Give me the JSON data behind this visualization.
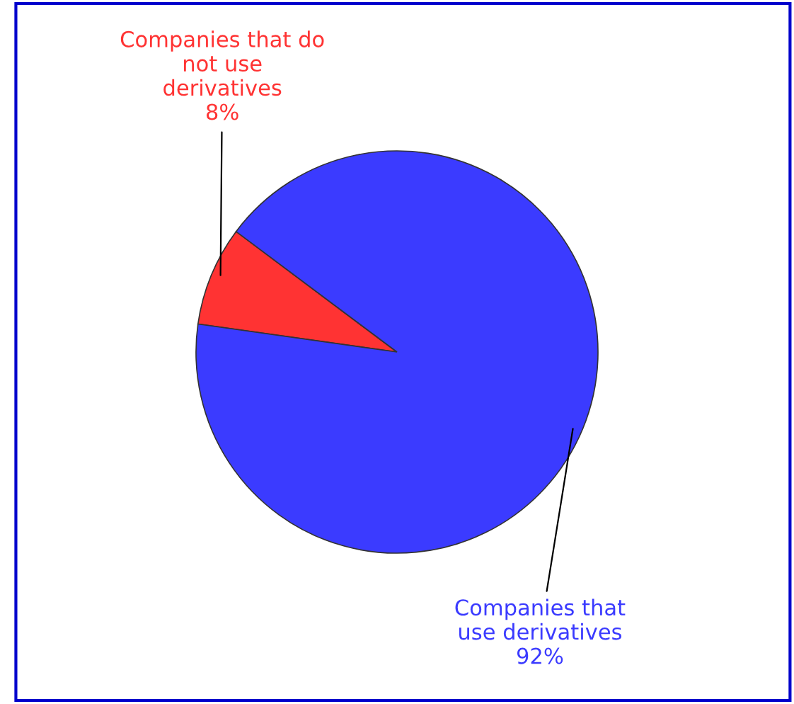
{
  "chart_data": {
    "type": "pie",
    "categories": [
      "Companies that do\nnot use\nderivatives",
      "Companies that\nuse derivatives"
    ],
    "values": [
      8,
      92
    ],
    "colors": [
      "#ff3333",
      "#3b3bff"
    ],
    "value_labels": [
      "8%",
      "92%"
    ]
  }
}
